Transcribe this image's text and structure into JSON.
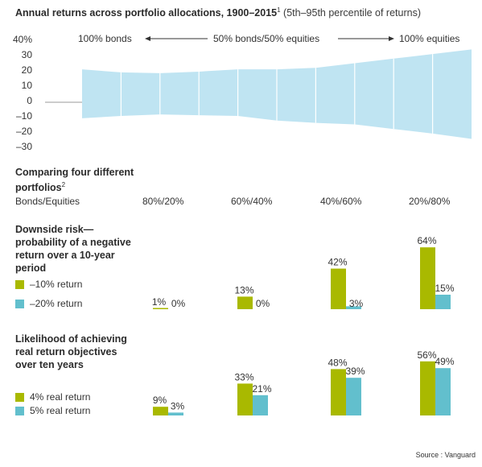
{
  "title": {
    "bold": "Annual returns across portfolio allocations, 1900–2015",
    "sup": "1",
    "rest": " (5th–95th percentile of returns)"
  },
  "band_chart": {
    "yticks": [
      "40%",
      "30",
      "20",
      "10",
      "0",
      "–10",
      "–20",
      "–30"
    ],
    "annot_left": "100% bonds",
    "annot_mid": "50% bonds/50% equities",
    "annot_right": "100% equities"
  },
  "comparing": {
    "title": "Comparing four different portfolios",
    "sup": "2",
    "row_label": "Bonds/Equities",
    "columns": [
      "80%/20%",
      "60%/40%",
      "40%/60%",
      "20%/80%"
    ]
  },
  "section1": {
    "title": "Downside risk— probability of a negative return over a 10-year period",
    "legend": [
      "–10% return",
      "–20% return"
    ]
  },
  "section2": {
    "title": "Likelihood of achieving real return objectives over ten years",
    "legend": [
      "4% real return",
      "5% real return"
    ]
  },
  "colors": {
    "green": "#a9b900",
    "blue": "#62bfcd",
    "band": "#bfe4f2",
    "axis": "#9a9a9a"
  },
  "source": "Source : Vanguard",
  "chart_data": [
    {
      "type": "area",
      "title": "Annual returns across portfolio allocations, 1900–2015",
      "x": [
        1,
        2,
        3,
        4,
        5,
        6,
        7,
        8,
        9,
        10,
        11
      ],
      "ylim": [
        -30,
        40
      ],
      "series": [
        {
          "values": [
            21,
            19,
            18.5,
            19.5,
            21,
            21,
            22,
            25,
            28,
            31,
            34
          ]
        },
        {
          "values": [
            -11,
            -9.5,
            -8.5,
            -9,
            -9.5,
            -12.5,
            -14,
            -15,
            -18,
            -21,
            -24.5
          ]
        }
      ]
    },
    {
      "type": "bar",
      "title": "Downside risk— probability of a negative return over a 10-year period",
      "categories": [
        "80%/20%",
        "60%/40%",
        "40%/60%",
        "20%/80%"
      ],
      "series": [
        {
          "name": "–10% return",
          "values": [
            1,
            13,
            42,
            64
          ]
        },
        {
          "name": "–20% return",
          "values": [
            0,
            0,
            3,
            15
          ]
        }
      ],
      "ylim": [
        0,
        100
      ]
    },
    {
      "type": "bar",
      "title": "Likelihood of achieving real return objectives over ten years",
      "categories": [
        "80%/20%",
        "60%/40%",
        "40%/60%",
        "20%/80%"
      ],
      "series": [
        {
          "name": "4% real return",
          "values": [
            9,
            33,
            48,
            56
          ]
        },
        {
          "name": "5% real return",
          "values": [
            3,
            21,
            39,
            49
          ]
        }
      ],
      "ylim": [
        0,
        100
      ]
    }
  ]
}
